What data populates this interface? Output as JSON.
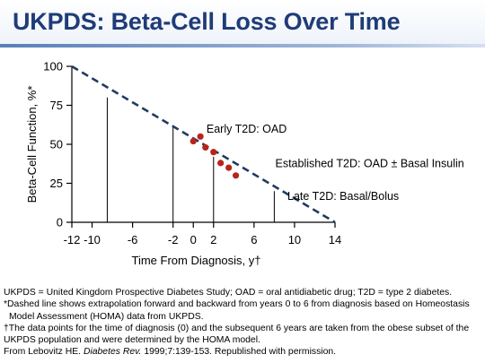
{
  "header": {
    "title": "UKPDS: Beta-Cell Loss Over Time"
  },
  "chart_data": {
    "type": "scatter",
    "ylabel": "Beta-Cell Function, %*",
    "xlabel": "Time From Diagnosis, y†",
    "xlim": [
      -12,
      14
    ],
    "ylim": [
      0,
      100
    ],
    "x_ticks": [
      -12,
      -10,
      -6,
      -2,
      0,
      2,
      6,
      10,
      14
    ],
    "x_tick_labels": [
      "-12",
      "-10",
      "-6",
      "-2",
      "0",
      "2",
      "6",
      "10",
      "14"
    ],
    "y_ticks": [
      0,
      25,
      50,
      75,
      100
    ],
    "y_tick_labels": [
      "0",
      "25",
      "50",
      "75",
      "100"
    ],
    "grid": false,
    "trend_line": {
      "style": "dashed",
      "color": "#1f3c60",
      "x": [
        -12,
        14
      ],
      "y": [
        100,
        0
      ]
    },
    "points": {
      "color": "#b8241c",
      "x": [
        0,
        0.7,
        1.2,
        2,
        2.7,
        3.5,
        4.2
      ],
      "y": [
        52,
        55,
        48,
        45,
        38,
        35,
        30
      ]
    },
    "reference_lines": [
      {
        "x": -8.5,
        "y": 80
      },
      {
        "x": -2,
        "y": 61
      },
      {
        "x": 2,
        "y": 42
      },
      {
        "x": 8,
        "y": 20
      }
    ],
    "annotations": [
      {
        "text": "Early T2D: OAD",
        "x": 1.3,
        "y": 60
      },
      {
        "text": "Established T2D: OAD ± Basal Insulin",
        "x": 8.1,
        "y": 38
      },
      {
        "text": "Late T2D: Basal/Bolus",
        "x": 9.3,
        "y": 17
      }
    ]
  },
  "footnotes": {
    "line1": "UKPDS = United Kingdom Prospective Diabetes Study; OAD = oral antidiabetic drug; T2D = type 2 diabetes.",
    "line2": "*Dashed line shows extrapolation forward and backward from years 0 to 6 from diagnosis based on Homeostasis",
    "line3": "Model Assessment (HOMA) data from UKPDS.",
    "line4": "†The data points for the time of diagnosis (0) and the subsequent 6 years are taken from the obese subset of the",
    "line5": "UKPDS population and were determined by the HOMA model.",
    "line6_prefix": "From Lebovitz HE. ",
    "line6_journal": "Diabetes Rev.",
    "line6_suffix": " 1999;7:139-153. Republished with permission."
  }
}
